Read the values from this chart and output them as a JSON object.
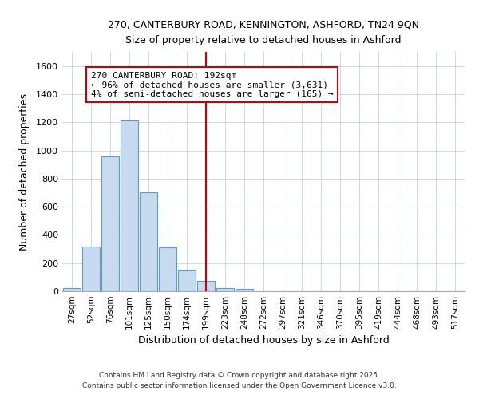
{
  "title_line1": "270, CANTERBURY ROAD, KENNINGTON, ASHFORD, TN24 9QN",
  "title_line2": "Size of property relative to detached houses in Ashford",
  "xlabel": "Distribution of detached houses by size in Ashford",
  "ylabel": "Number of detached properties",
  "bins": [
    "27sqm",
    "52sqm",
    "76sqm",
    "101sqm",
    "125sqm",
    "150sqm",
    "174sqm",
    "199sqm",
    "223sqm",
    "248sqm",
    "272sqm",
    "297sqm",
    "321sqm",
    "346sqm",
    "370sqm",
    "395sqm",
    "419sqm",
    "444sqm",
    "468sqm",
    "493sqm",
    "517sqm"
  ],
  "values": [
    20,
    315,
    960,
    1210,
    700,
    310,
    155,
    75,
    25,
    15,
    0,
    0,
    0,
    0,
    0,
    0,
    0,
    0,
    0,
    0,
    0
  ],
  "bar_color": "#c8daf0",
  "bar_edge_color": "#5b9bd5",
  "subject_line_color": "#cc0000",
  "annotation_line1": "270 CANTERBURY ROAD: 192sqm",
  "annotation_line2": "← 96% of detached houses are smaller (3,631)",
  "annotation_line3": "4% of semi-detached houses are larger (165) →",
  "annotation_box_edge": "#cc0000",
  "annotation_box_face": "#ffffff",
  "ylim": [
    0,
    1700
  ],
  "yticks": [
    0,
    200,
    400,
    600,
    800,
    1000,
    1200,
    1400,
    1600
  ],
  "footer_line1": "Contains HM Land Registry data © Crown copyright and database right 2025.",
  "footer_line2": "Contains public sector information licensed under the Open Government Licence v3.0.",
  "bg_color": "#ffffff",
  "plot_bg_color": "#ffffff",
  "grid_color": "#c8d8e8"
}
